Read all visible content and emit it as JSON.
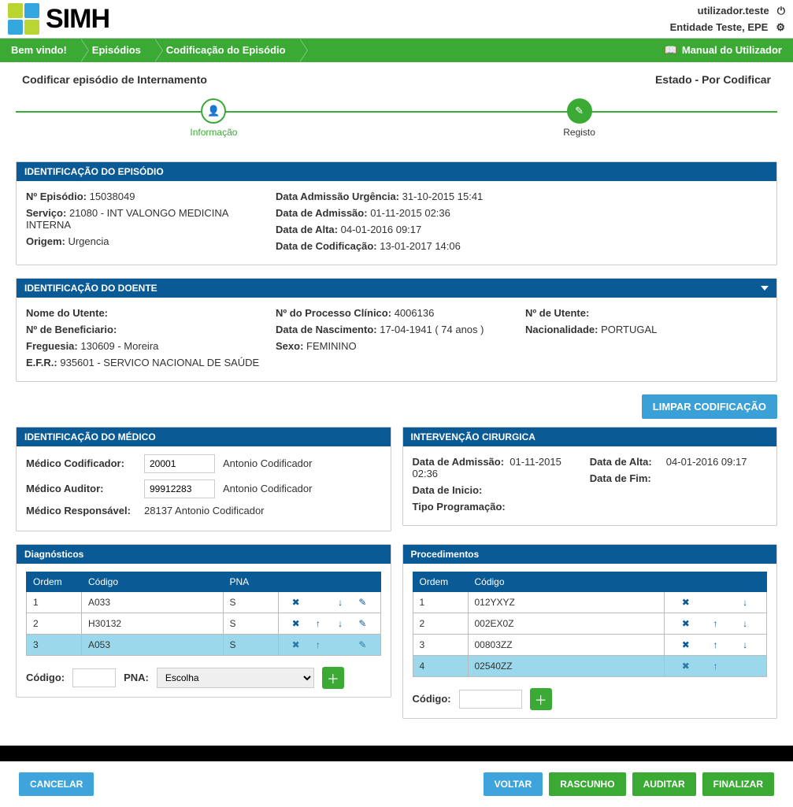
{
  "colors": {
    "green": "#3aaa35",
    "blue_header": "#0a5a96",
    "light_blue": "#3fa4dc",
    "row_sel": "#9cd8eb",
    "logo_sq": [
      "#b9d531",
      "#35a7df",
      "#35a7df",
      "#b9d531"
    ]
  },
  "header": {
    "app_name": "SIMH",
    "user": "utilizador.teste",
    "entity": "Entidade Teste, EPE"
  },
  "crumbs": {
    "items": [
      "Bem vindo!",
      "Episódios",
      "Codificação do Episódio"
    ],
    "manual": "Manual do Utilizador"
  },
  "page": {
    "title": "Codificar episódio de Internamento",
    "status": "Estado - Por Codificar"
  },
  "steps": {
    "s1": "Informação",
    "s2": "Registo"
  },
  "episodio": {
    "title": "IDENTIFICAÇÃO DO EPISÓDIO",
    "n_episodio_lbl": "Nº Episódio:",
    "n_episodio": "15038049",
    "servico_lbl": "Serviço:",
    "servico": "21080 - INT VALONGO MEDICINA INTERNA",
    "origem_lbl": "Origem:",
    "origem": "Urgencia",
    "data_urg_lbl": "Data Admissão Urgência:",
    "data_urg": "31-10-2015 15:41",
    "data_adm_lbl": "Data de Admissão:",
    "data_adm": "01-11-2015 02:36",
    "data_alta_lbl": "Data de Alta:",
    "data_alta": "04-01-2016 09:17",
    "data_cod_lbl": "Data de Codificação:",
    "data_cod": "13-01-2017 14:06"
  },
  "doente": {
    "title": "IDENTIFICAÇÃO DO DOENTE",
    "nome_lbl": "Nome do Utente:",
    "nome": "",
    "benef_lbl": "Nº de Beneficiario:",
    "benef": "",
    "freg_lbl": "Freguesia:",
    "freg": "130609 - Moreira",
    "efr_lbl": "E.F.R.:",
    "efr": "935601 - SERVICO NACIONAL DE SAÚDE",
    "proc_lbl": "Nº do Processo Clínico:",
    "proc": "4006136",
    "nasc_lbl": "Data de Nascimento:",
    "nasc": "17-04-1941 ( 74 anos )",
    "sexo_lbl": "Sexo:",
    "sexo": "FEMININO",
    "utente_lbl": "Nº de Utente:",
    "utente": "",
    "nac_lbl": "Nacionalidade:",
    "nac": "PORTUGAL"
  },
  "clear_btn": "LIMPAR CODIFICAÇÃO",
  "medico": {
    "title": "IDENTIFICAÇÃO DO MÉDICO",
    "cod_lbl": "Médico Codificador:",
    "cod_val": "20001",
    "cod_name": "Antonio Codificador",
    "aud_lbl": "Médico Auditor:",
    "aud_val": "99912283",
    "aud_name": "Antonio Codificador",
    "resp_lbl": "Médico Responsável:",
    "resp": "28137 Antonio Codificador"
  },
  "interv": {
    "title": "INTERVENÇÃO CIRURGICA",
    "adm_lbl": "Data de Admissão:",
    "adm": "01-11-2015 02:36",
    "alta_lbl": "Data de Alta:",
    "alta": "04-01-2016 09:17",
    "inicio_lbl": "Data de Inicio:",
    "inicio": "",
    "fim_lbl": "Data de Fim:",
    "fim": "",
    "tipo_lbl": "Tipo Programação:",
    "tipo": ""
  },
  "diag": {
    "title": "Diagnósticos",
    "headers": {
      "ordem": "Ordem",
      "codigo": "Código",
      "pna": "PNA"
    },
    "rows": [
      {
        "ordem": "1",
        "codigo": "A033",
        "pna": "S",
        "sel": false,
        "up": false,
        "down": true,
        "edit": true
      },
      {
        "ordem": "2",
        "codigo": "H30132",
        "pna": "S",
        "sel": false,
        "up": true,
        "down": true,
        "edit": true
      },
      {
        "ordem": "3",
        "codigo": "A053",
        "pna": "S",
        "sel": true,
        "up": true,
        "down": false,
        "edit": true
      }
    ],
    "add_codigo_lbl": "Código:",
    "add_pna_lbl": "PNA:",
    "pna_placeholder": "Escolha"
  },
  "proc": {
    "title": "Procedimentos",
    "headers": {
      "ordem": "Ordem",
      "codigo": "Código"
    },
    "rows": [
      {
        "ordem": "1",
        "codigo": "012YXYZ",
        "sel": false,
        "up": false,
        "down": true
      },
      {
        "ordem": "2",
        "codigo": "002EX0Z",
        "sel": false,
        "up": true,
        "down": true
      },
      {
        "ordem": "3",
        "codigo": "00803ZZ",
        "sel": false,
        "up": true,
        "down": true
      },
      {
        "ordem": "4",
        "codigo": "02540ZZ",
        "sel": true,
        "up": true,
        "down": false
      }
    ],
    "add_codigo_lbl": "Código:"
  },
  "footer": {
    "cancel": "CANCELAR",
    "voltar": "VOLTAR",
    "rascunho": "RASCUNHO",
    "auditar": "AUDITAR",
    "finalizar": "FINALIZAR"
  }
}
